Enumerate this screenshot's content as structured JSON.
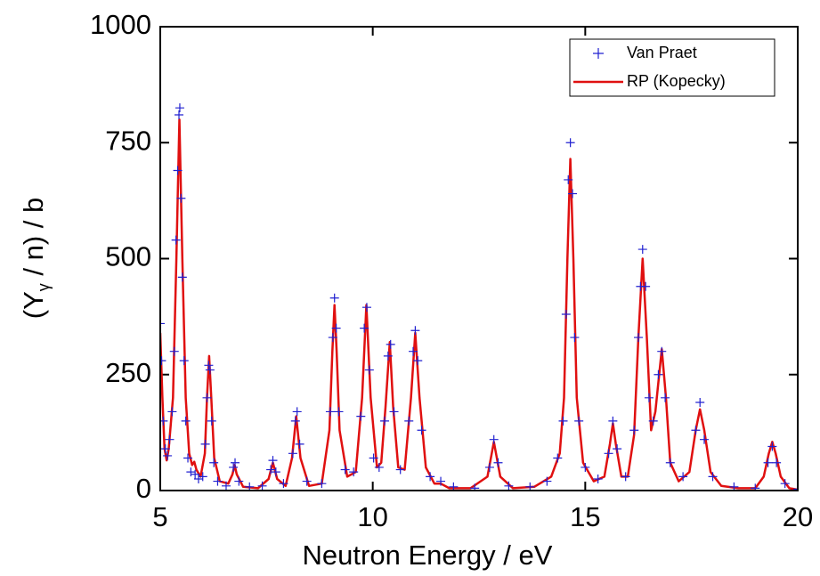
{
  "chart_data": {
    "type": "line",
    "xlabel": "Neutron Energy / eV",
    "ylabel": {
      "main": "(Y",
      "sub": "γ",
      "rest": " / n) / b"
    },
    "xlim": [
      5,
      20
    ],
    "xticks": [
      5,
      10,
      15,
      20
    ],
    "ylim": [
      0,
      1000
    ],
    "yticks": [
      0,
      250,
      500,
      750,
      1000
    ],
    "legend": "upper right",
    "series": [
      {
        "name": "Van Praet",
        "color": "#2020d0",
        "mode": "markers",
        "x": [
          5.0,
          5.03,
          5.07,
          5.12,
          5.17,
          5.22,
          5.28,
          5.33,
          5.37,
          5.41,
          5.44,
          5.46,
          5.49,
          5.52,
          5.56,
          5.6,
          5.65,
          5.72,
          5.82,
          5.9,
          6.0,
          6.06,
          6.1,
          6.14,
          6.17,
          6.21,
          6.26,
          6.35,
          6.55,
          6.72,
          6.76,
          6.85,
          7.1,
          7.4,
          7.6,
          7.65,
          7.72,
          7.9,
          8.12,
          8.18,
          8.22,
          8.28,
          8.45,
          8.8,
          9.0,
          9.06,
          9.1,
          9.14,
          9.2,
          9.35,
          9.55,
          9.72,
          9.8,
          9.86,
          9.92,
          10.02,
          10.15,
          10.28,
          10.36,
          10.42,
          10.5,
          10.65,
          10.85,
          10.95,
          11.0,
          11.06,
          11.15,
          11.35,
          11.6,
          11.9,
          12.4,
          12.75,
          12.85,
          12.95,
          13.2,
          13.7,
          14.1,
          14.35,
          14.48,
          14.55,
          14.6,
          14.65,
          14.7,
          14.75,
          14.85,
          15.0,
          15.3,
          15.55,
          15.65,
          15.75,
          15.95,
          16.15,
          16.25,
          16.3,
          16.35,
          16.42,
          16.5,
          16.6,
          16.72,
          16.8,
          16.88,
          17.0,
          17.3,
          17.6,
          17.7,
          17.8,
          18.0,
          18.5,
          19.0,
          19.3,
          19.4,
          19.5,
          19.7,
          20.0
        ],
        "y": [
          360,
          280,
          150,
          90,
          75,
          110,
          170,
          300,
          540,
          690,
          810,
          825,
          630,
          460,
          280,
          150,
          70,
          40,
          35,
          25,
          30,
          100,
          200,
          270,
          260,
          150,
          60,
          20,
          10,
          50,
          60,
          20,
          8,
          10,
          45,
          65,
          40,
          15,
          80,
          150,
          170,
          100,
          20,
          15,
          170,
          330,
          415,
          350,
          170,
          45,
          40,
          160,
          350,
          395,
          260,
          70,
          50,
          150,
          290,
          315,
          170,
          45,
          150,
          300,
          345,
          280,
          130,
          30,
          20,
          8,
          5,
          50,
          110,
          60,
          10,
          8,
          20,
          70,
          150,
          380,
          670,
          750,
          640,
          330,
          150,
          50,
          25,
          80,
          150,
          90,
          30,
          130,
          330,
          440,
          520,
          440,
          200,
          150,
          250,
          300,
          200,
          60,
          30,
          130,
          190,
          110,
          30,
          8,
          5,
          60,
          95,
          60,
          15,
          3
        ]
      },
      {
        "name": "RP (Kopecky)",
        "color": "#e01010",
        "mode": "line",
        "x": [
          5.0,
          5.05,
          5.1,
          5.15,
          5.2,
          5.3,
          5.38,
          5.45,
          5.52,
          5.6,
          5.68,
          5.75,
          5.8,
          5.85,
          5.95,
          6.05,
          6.1,
          6.15,
          6.2,
          6.27,
          6.4,
          6.6,
          6.7,
          6.75,
          6.8,
          6.95,
          7.3,
          7.55,
          7.65,
          7.75,
          7.95,
          8.1,
          8.2,
          8.3,
          8.5,
          8.8,
          8.98,
          9.05,
          9.1,
          9.15,
          9.22,
          9.4,
          9.6,
          9.75,
          9.85,
          9.95,
          10.1,
          10.2,
          10.3,
          10.4,
          10.48,
          10.6,
          10.75,
          10.9,
          11.0,
          11.1,
          11.25,
          11.45,
          11.6,
          11.8,
          12.3,
          12.7,
          12.85,
          13.0,
          13.3,
          13.8,
          14.2,
          14.4,
          14.5,
          14.58,
          14.65,
          14.72,
          14.8,
          14.95,
          15.2,
          15.45,
          15.58,
          15.65,
          15.72,
          15.85,
          16.0,
          16.15,
          16.25,
          16.35,
          16.45,
          16.55,
          16.65,
          16.8,
          16.9,
          17.0,
          17.2,
          17.45,
          17.6,
          17.7,
          17.8,
          17.95,
          18.2,
          18.6,
          19.0,
          19.2,
          19.32,
          19.4,
          19.48,
          19.6,
          19.8,
          20.0
        ],
        "y": [
          340,
          200,
          90,
          65,
          90,
          200,
          500,
          800,
          500,
          200,
          80,
          55,
          62,
          45,
          30,
          80,
          200,
          290,
          200,
          70,
          20,
          15,
          35,
          55,
          35,
          8,
          5,
          25,
          60,
          25,
          10,
          70,
          160,
          70,
          10,
          15,
          130,
          300,
          400,
          300,
          130,
          30,
          40,
          200,
          400,
          200,
          50,
          60,
          180,
          320,
          180,
          50,
          45,
          200,
          340,
          200,
          50,
          15,
          15,
          5,
          5,
          30,
          105,
          30,
          5,
          8,
          30,
          80,
          200,
          500,
          715,
          500,
          200,
          60,
          20,
          30,
          100,
          145,
          100,
          30,
          30,
          120,
          330,
          500,
          330,
          130,
          170,
          305,
          200,
          60,
          20,
          40,
          130,
          175,
          130,
          40,
          10,
          5,
          5,
          30,
          80,
          105,
          80,
          30,
          5,
          2
        ]
      }
    ]
  }
}
